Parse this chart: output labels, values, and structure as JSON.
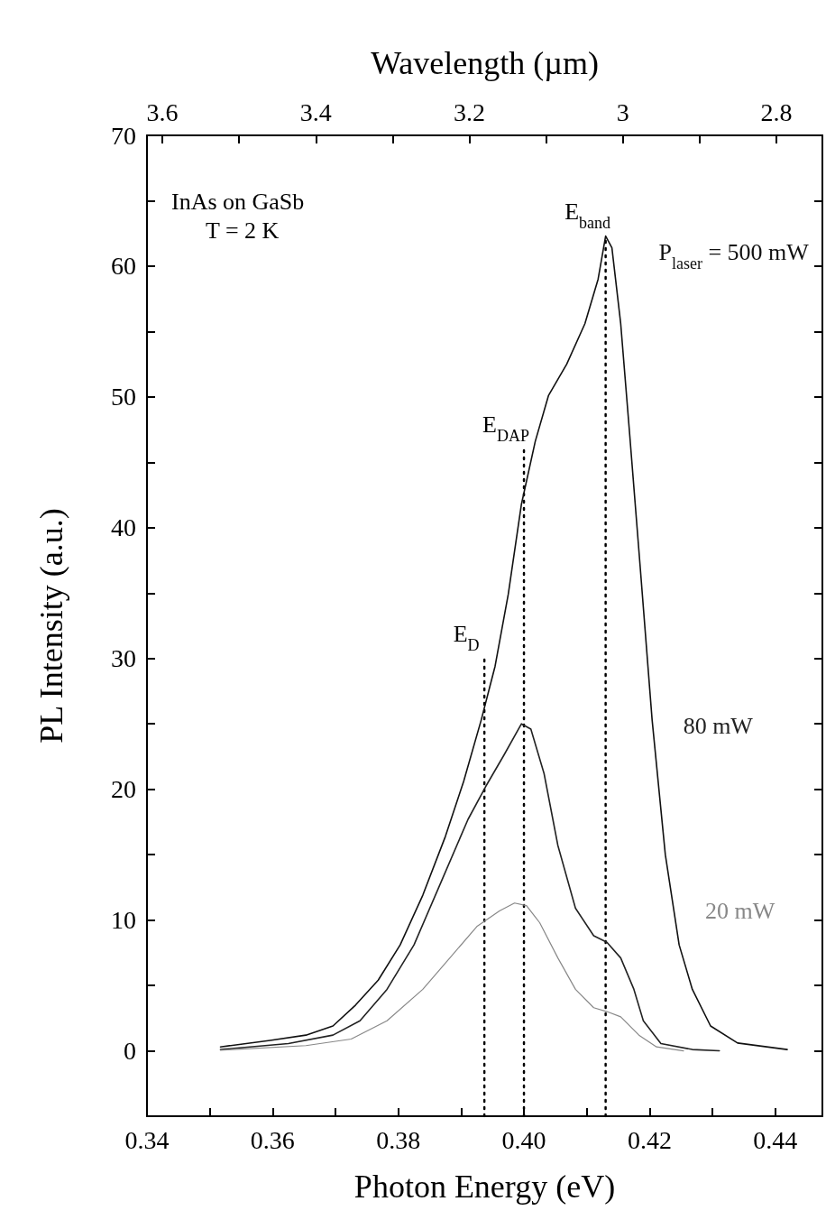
{
  "chart_data": {
    "type": "line",
    "xlabel": "Photon Energy (eV)",
    "ylabel": "PL Intensity (a.u.)",
    "x2label": "Wavelength (µm)",
    "xlim": [
      0.34,
      0.4475
    ],
    "ylim": [
      -5,
      70
    ],
    "x2lim": [
      3.62,
      2.74
    ],
    "xticks": [
      {
        "value": 0.34,
        "label": "0.34"
      },
      {
        "value": 0.35,
        "label": null
      },
      {
        "value": 0.36,
        "label": "0.36"
      },
      {
        "value": 0.37,
        "label": null
      },
      {
        "value": 0.38,
        "label": "0.38"
      },
      {
        "value": 0.39,
        "label": null
      },
      {
        "value": 0.4,
        "label": "0.40"
      },
      {
        "value": 0.41,
        "label": null
      },
      {
        "value": 0.42,
        "label": "0.42"
      },
      {
        "value": 0.43,
        "label": null
      },
      {
        "value": 0.44,
        "label": "0.44"
      }
    ],
    "x2ticks": [
      3.6,
      {
        "value": 3.5,
        "label": null
      },
      3.4,
      {
        "value": 3.3,
        "label": null
      },
      3.2,
      {
        "value": 3.1,
        "label": null
      },
      3,
      {
        "value": 2.9,
        "label": null
      },
      2.8
    ],
    "yticks": [
      0,
      {
        "value": 5,
        "label": null
      },
      10,
      {
        "value": 15,
        "label": null
      },
      20,
      {
        "value": 25,
        "label": null
      },
      30,
      {
        "value": 35,
        "label": null
      },
      40,
      {
        "value": 45,
        "label": null
      },
      50,
      {
        "value": 55,
        "label": null
      },
      60,
      {
        "value": 65,
        "label": null
      },
      70
    ],
    "grid": false,
    "legend": false,
    "marker": "none",
    "line_style": "solid",
    "series": [
      {
        "name": "P$_{laser}$ = 500 mW",
        "color": "#111111",
        "x": [
          0.3517,
          0.3596,
          0.3653,
          0.3696,
          0.3732,
          0.3768,
          0.3803,
          0.3839,
          0.3875,
          0.3904,
          0.3932,
          0.3954,
          0.3975,
          0.3996,
          0.4018,
          0.4039,
          0.4068,
          0.4097,
          0.4118,
          0.413,
          0.414,
          0.4154,
          0.4168,
          0.4185,
          0.4204,
          0.4225,
          0.4247,
          0.4268,
          0.4297,
          0.434,
          0.4419
        ],
        "values": [
          0.3,
          0.8,
          1.2,
          1.9,
          3.5,
          5.4,
          8.1,
          11.9,
          16.4,
          20.6,
          25.3,
          29.4,
          34.9,
          41.8,
          46.6,
          50.1,
          52.5,
          55.6,
          59,
          62.3,
          61.4,
          55.6,
          47.3,
          37,
          25.3,
          15,
          8.1,
          4.7,
          1.9,
          0.6,
          0.1
        ]
      },
      {
        "name": "80 mW",
        "color": "#222222",
        "x": [
          0.3517,
          0.3625,
          0.3696,
          0.3739,
          0.3782,
          0.3825,
          0.3868,
          0.3911,
          0.3939,
          0.3968,
          0.3996,
          0.4011,
          0.4032,
          0.4054,
          0.4082,
          0.4111,
          0.4132,
          0.4154,
          0.4175,
          0.419,
          0.4218,
          0.4268,
          0.4311
        ],
        "values": [
          0.1,
          0.55,
          1.2,
          2.3,
          4.7,
          8.1,
          12.9,
          17.7,
          20.2,
          22.6,
          25,
          24.6,
          21.2,
          15.7,
          10.9,
          8.8,
          8.3,
          7.1,
          4.7,
          2.3,
          0.55,
          0.1,
          0
        ]
      },
      {
        "name": "20 mW",
        "color": "#888888",
        "x": [
          0.3517,
          0.3653,
          0.3725,
          0.3782,
          0.3839,
          0.3882,
          0.3925,
          0.3961,
          0.3985,
          0.4004,
          0.4025,
          0.4054,
          0.4082,
          0.4111,
          0.4132,
          0.4154,
          0.4183,
          0.4211,
          0.4254
        ],
        "values": [
          0.05,
          0.4,
          0.9,
          2.3,
          4.7,
          7.1,
          9.5,
          10.7,
          11.3,
          11.1,
          9.8,
          7.1,
          4.7,
          3.3,
          3,
          2.6,
          1.2,
          0.3,
          0
        ]
      },
      {
        "color": "#000000",
        "line_style": "dotted",
        "x": [
          0.3937,
          0.3937
        ],
        "values": [
          -5,
          30
        ]
      },
      {
        "color": "#000000",
        "line_style": "dotted",
        "x": [
          0.4,
          0.4
        ],
        "values": [
          -5,
          46
        ]
      },
      {
        "color": "#000000",
        "line_style": "dotted",
        "x": [
          0.413,
          0.413
        ],
        "values": [
          -5,
          62.3
        ]
      }
    ],
    "annotations": [
      "InAs on GaSb",
      "T = 2 K",
      {
        "text": "E$_{band}$",
        "x": 0.413,
        "y": 62.3
      },
      {
        "text": "E$_{DAP}$",
        "x": 0.4,
        "y": 46
      },
      {
        "text": "E$_{D}$",
        "x": 0.3937,
        "y": 30
      }
    ]
  }
}
